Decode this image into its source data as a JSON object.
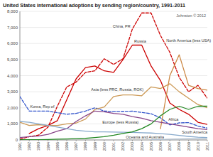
{
  "chart_data": {
    "type": "line",
    "title": "United States international adoptions by sending region/country, 1991-2011",
    "annotation": "Johnston © 2012",
    "x": [
      1991,
      1992,
      1993,
      1994,
      1995,
      1996,
      1997,
      1998,
      1999,
      2000,
      2001,
      2002,
      2003,
      2004,
      2005,
      2006,
      2007,
      2008,
      2009,
      2010,
      2011
    ],
    "xlim": [
      1991,
      2011
    ],
    "xticks": [
      1991,
      1992,
      1993,
      1994,
      1995,
      1996,
      1997,
      1998,
      1999,
      2000,
      2001,
      2002,
      2003,
      2004,
      2005,
      2006,
      2007,
      2008,
      2009,
      2010,
      2011
    ],
    "ylim": [
      0,
      8000
    ],
    "yticks": [
      0,
      {
        "value": 1000,
        "label": "1,000"
      },
      {
        "value": 2000,
        "label": "2,000"
      },
      {
        "value": 3000,
        "label": "3,000"
      },
      {
        "value": 4000,
        "label": "4,000"
      },
      {
        "value": 5000,
        "label": "5,000"
      },
      {
        "value": 6000,
        "label": "6,000"
      },
      {
        "value": 7000,
        "label": "7,000"
      },
      {
        "value": 8000,
        "label": "8,000"
      }
    ],
    "grid": true,
    "series": [
      {
        "name": "China, PR",
        "color": "#cc0000",
        "line_style": "dashed",
        "values": [
          50,
          200,
          300,
          800,
          2100,
          3300,
          3600,
          4200,
          4300,
          5050,
          4700,
          5050,
          6900,
          7900,
          7900,
          6500,
          5450,
          3900,
          3000,
          3400,
          2600
        ]
      },
      {
        "name": "Russia",
        "color": "#cc0000",
        "line_style": "solid",
        "values": [
          null,
          400,
          700,
          900,
          1200,
          2500,
          3800,
          4500,
          4600,
          4300,
          4200,
          5000,
          5900,
          5900,
          4600,
          3700,
          2300,
          1900,
          1600,
          1100,
          970
        ]
      },
      {
        "name": "Korea, Rep of",
        "color": "#3355cc",
        "line_style": "dashed",
        "values": [
          2700,
          1800,
          1800,
          1800,
          1700,
          1600,
          1650,
          1800,
          2000,
          1800,
          1770,
          1779,
          1790,
          1716,
          1630,
          1376,
          939,
          1062,
          1080,
          863,
          736
        ]
      },
      {
        "name": "Asia (less PRC, Russia, ROK)",
        "color": "#cc9955",
        "line_style": "solid",
        "values": [
          1100,
          900,
          950,
          900,
          900,
          1000,
          1050,
          1300,
          1900,
          2050,
          2700,
          2800,
          2800,
          2750,
          3300,
          3200,
          3500,
          3000,
          2600,
          2200,
          2000
        ]
      },
      {
        "name": "North America (less USA)",
        "color": "#cc8844",
        "line_style": "solid",
        "values": [
          null,
          null,
          null,
          null,
          null,
          null,
          null,
          null,
          null,
          null,
          null,
          null,
          null,
          null,
          null,
          700,
          4000,
          5300,
          3400,
          3200,
          3100
        ]
      },
      {
        "name": "Europe (less Russia)",
        "color": "#884488",
        "line_style": "solid",
        "values": [
          150,
          200,
          250,
          350,
          550,
          700,
          1150,
          1500,
          1800,
          1750,
          1650,
          1600,
          1450,
          1350,
          1200,
          1100,
          1000,
          900,
          800,
          700,
          650
        ]
      },
      {
        "name": "South America",
        "color": "#88aacc",
        "line_style": "solid",
        "values": [
          1150,
          1100,
          1000,
          900,
          800,
          700,
          600,
          550,
          500,
          500,
          490,
          480,
          470,
          450,
          430,
          390,
          350,
          280,
          220,
          170,
          150
        ]
      },
      {
        "name": "Africa",
        "color": "#228822",
        "line_style": "solid",
        "values": [
          10,
          15,
          20,
          30,
          50,
          60,
          80,
          100,
          150,
          200,
          290,
          400,
          500,
          700,
          1000,
          1500,
          1900,
          2100,
          1900,
          2100,
          2100
        ]
      },
      {
        "name": "Oceania and Australia",
        "color": "#aabbcc",
        "line_style": "solid",
        "values": [
          null,
          null,
          null,
          null,
          null,
          null,
          null,
          null,
          null,
          null,
          null,
          null,
          null,
          null,
          20,
          30,
          50,
          60,
          70,
          75,
          80
        ]
      }
    ]
  }
}
